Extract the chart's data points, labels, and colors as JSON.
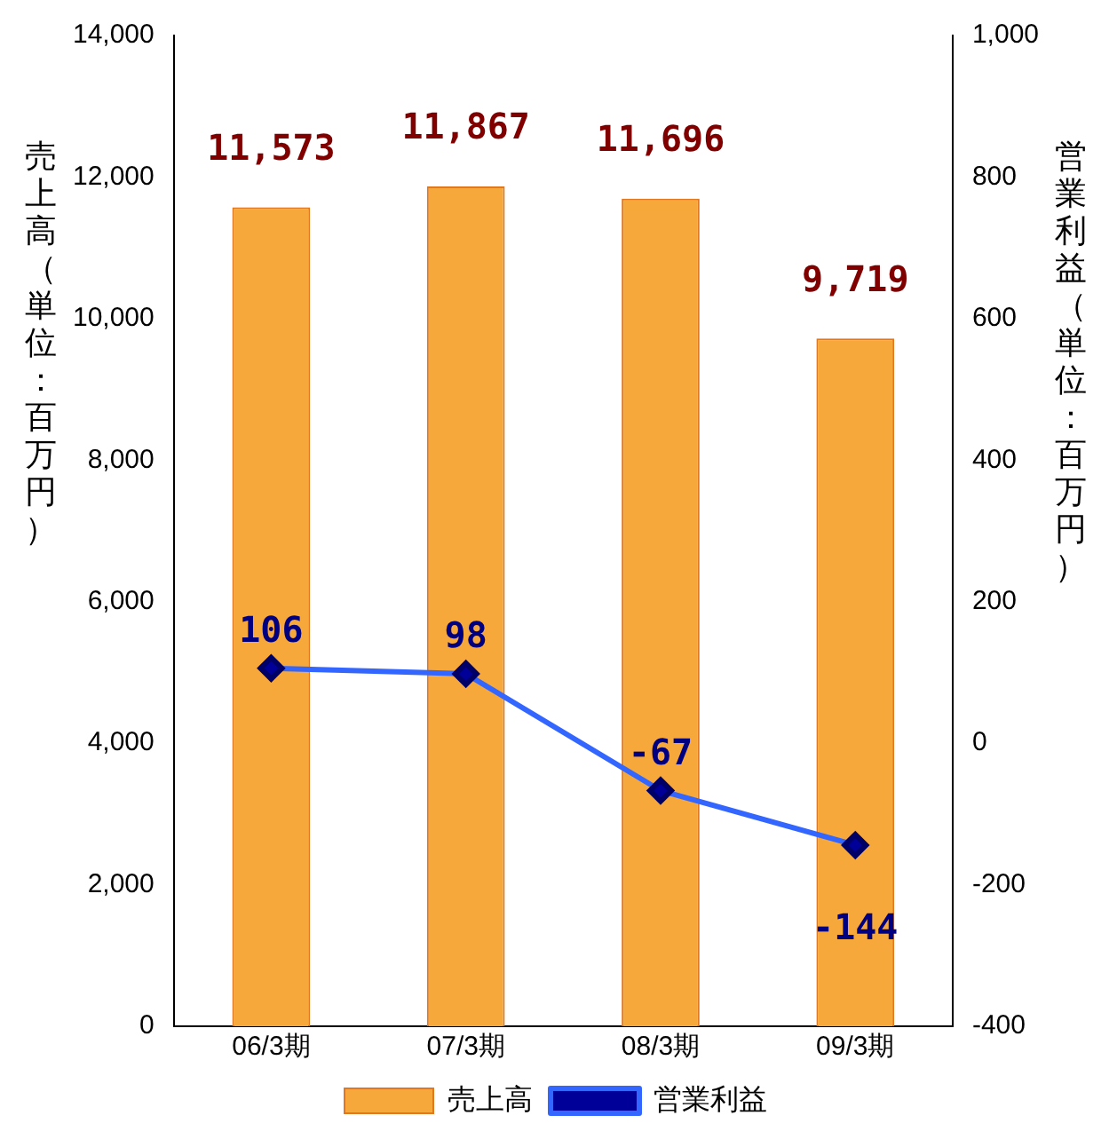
{
  "chart_data": {
    "type": "bar",
    "categories": [
      "06/3期",
      "07/3期",
      "08/3期",
      "09/3期"
    ],
    "ylabel": "売上高（単位：百万円）",
    "y2label": "営業利益（単位：百万円）",
    "series": [
      {
        "name": "売上高",
        "color": "#f7a83a",
        "values": [
          11573,
          11867,
          11696,
          9719
        ],
        "value_labels": [
          "11,573",
          "11,867",
          "11,696",
          "9,719"
        ]
      },
      {
        "name": "営業利益",
        "type": "line",
        "axis": "y2",
        "color": "#3366ff",
        "marker": "diamond",
        "values": [
          106,
          98,
          -67,
          -144
        ],
        "value_labels": [
          "106",
          "98",
          "-67",
          "-144"
        ]
      }
    ],
    "ylim": [
      0,
      14000
    ],
    "yticks": [
      0,
      {
        "value": 2000,
        "label": "2,000"
      },
      {
        "value": 4000,
        "label": "4,000"
      },
      {
        "value": 6000,
        "label": "6,000"
      },
      {
        "value": 8000,
        "label": "8,000"
      },
      {
        "value": 10000,
        "label": "10,000"
      },
      {
        "value": 12000,
        "label": "12,000"
      },
      {
        "value": 14000,
        "label": "14,000"
      }
    ],
    "y2lim": [
      -400,
      1000
    ],
    "y2ticks": [
      -400,
      -200,
      0,
      200,
      400,
      600,
      800,
      {
        "value": 1000,
        "label": "1,000"
      }
    ],
    "grid": false,
    "legend": "bottom"
  }
}
